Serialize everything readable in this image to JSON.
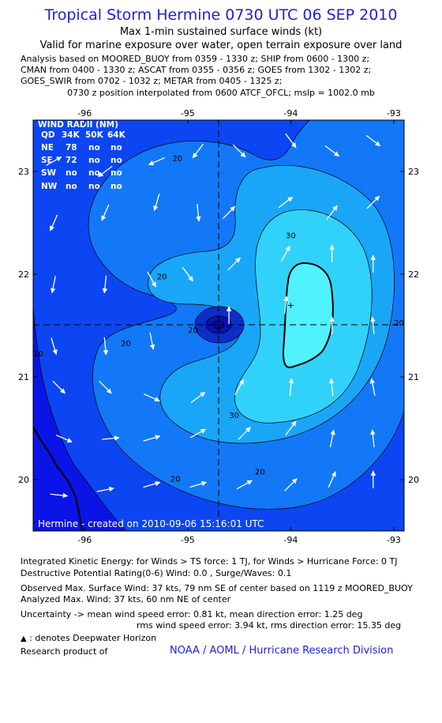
{
  "header": {
    "title": "Tropical Storm Hermine 0730 UTC 06 SEP 2010",
    "subtitle": "Max 1-min sustained surface winds (kt)",
    "valid": "Valid for marine exposure over water, open terrain exposure over land",
    "analysis_lines": [
      "Analysis based on MOORED_BUOY from 0359 - 1330 z; SHIP from 0600 - 1300 z;",
      "CMAN from 0400 - 1330 z; ASCAT from 0355 - 0356 z; GOES from 1302 - 1302 z;",
      "GOES_SWIR from 0702 - 1032 z; METAR from 0405 - 1325 z;"
    ],
    "position_note": "0730 z position interpolated from 0600 ATCF_OFCL; mslp = 1002.0 mb"
  },
  "chart_data": {
    "type": "contour",
    "xlim": [
      -96.5,
      -92.9
    ],
    "ylim": [
      19.5,
      23.5
    ],
    "x_ticks": [
      -96,
      -95,
      -94,
      -93
    ],
    "x_tick_labels": [
      "-96",
      "-95",
      "-94",
      "-93"
    ],
    "y_ticks": [
      20,
      21,
      22,
      23
    ],
    "y_tick_labels": [
      "20",
      "21",
      "22",
      "23"
    ],
    "storm_center": {
      "lon": -95.0,
      "lat": 21.5
    },
    "max_wind_marker": {
      "lon": -94.0,
      "lat": 21.7
    },
    "contour_levels": [
      10,
      20,
      30,
      34
    ],
    "contour_labels": [
      {
        "text": "20",
        "lon": -95.1,
        "lat": 23.1
      },
      {
        "text": "20",
        "lon": -95.25,
        "lat": 21.95
      },
      {
        "text": "20",
        "lon": -95.6,
        "lat": 21.3
      },
      {
        "text": "30",
        "lon": -94.0,
        "lat": 22.35
      },
      {
        "text": "30",
        "lon": -94.55,
        "lat": 20.6
      },
      {
        "text": "20",
        "lon": -94.3,
        "lat": 20.05
      },
      {
        "text": "20",
        "lon": -95.12,
        "lat": 19.98
      },
      {
        "text": "20",
        "lon": -92.95,
        "lat": 21.5
      },
      {
        "text": "10",
        "lon": -96.45,
        "lat": 21.2
      },
      {
        "text": "20",
        "lon": -94.95,
        "lat": 21.43
      }
    ],
    "wind_barbs": [
      {
        "lon": -96.3,
        "lat": 23.1,
        "u": 0.9,
        "v": 0.5
      },
      {
        "lon": -95.8,
        "lat": 23.0,
        "u": -0.8,
        "v": -0.6
      },
      {
        "lon": -95.3,
        "lat": 23.1,
        "u": -0.9,
        "v": -0.4
      },
      {
        "lon": -94.9,
        "lat": 23.2,
        "u": -0.6,
        "v": -0.8
      },
      {
        "lon": -94.5,
        "lat": 23.2,
        "u": 0.7,
        "v": -0.7
      },
      {
        "lon": -94.0,
        "lat": 23.3,
        "u": 0.6,
        "v": -0.8
      },
      {
        "lon": -93.6,
        "lat": 23.2,
        "u": 0.8,
        "v": -0.6
      },
      {
        "lon": -93.2,
        "lat": 23.3,
        "u": 0.8,
        "v": -0.6
      },
      {
        "lon": -96.3,
        "lat": 22.5,
        "u": -0.4,
        "v": -0.9
      },
      {
        "lon": -95.8,
        "lat": 22.6,
        "u": -0.4,
        "v": -0.9
      },
      {
        "lon": -95.3,
        "lat": 22.7,
        "u": -0.3,
        "v": -1.0
      },
      {
        "lon": -94.9,
        "lat": 22.6,
        "u": 0.1,
        "v": -1.0
      },
      {
        "lon": -94.6,
        "lat": 22.6,
        "u": 0.7,
        "v": 0.7
      },
      {
        "lon": -94.05,
        "lat": 22.7,
        "u": 0.8,
        "v": 0.6
      },
      {
        "lon": -93.6,
        "lat": 22.6,
        "u": 0.6,
        "v": 0.8
      },
      {
        "lon": -93.2,
        "lat": 22.7,
        "u": 0.7,
        "v": 0.7
      },
      {
        "lon": -96.3,
        "lat": 21.9,
        "u": -0.2,
        "v": -1.0
      },
      {
        "lon": -95.8,
        "lat": 21.9,
        "u": -0.1,
        "v": -1.0
      },
      {
        "lon": -95.35,
        "lat": 21.95,
        "u": 0.5,
        "v": -0.9
      },
      {
        "lon": -95.0,
        "lat": 22.0,
        "u": 0.6,
        "v": -0.8
      },
      {
        "lon": -94.55,
        "lat": 22.1,
        "u": 0.7,
        "v": 0.7
      },
      {
        "lon": -94.05,
        "lat": 22.2,
        "u": 0.5,
        "v": 0.9
      },
      {
        "lon": -93.6,
        "lat": 22.2,
        "u": 0.0,
        "v": 1.0
      },
      {
        "lon": -93.2,
        "lat": 22.1,
        "u": 0.0,
        "v": 1.0
      },
      {
        "lon": -96.3,
        "lat": 21.3,
        "u": 0.3,
        "v": -1.0
      },
      {
        "lon": -95.8,
        "lat": 21.3,
        "u": 0.1,
        "v": -1.0
      },
      {
        "lon": -95.35,
        "lat": 21.35,
        "u": 0.2,
        "v": -1.0
      },
      {
        "lon": -94.6,
        "lat": 21.6,
        "u": 0.0,
        "v": 1.0
      },
      {
        "lon": -94.05,
        "lat": 21.7,
        "u": 0.1,
        "v": 1.0
      },
      {
        "lon": -93.6,
        "lat": 21.5,
        "u": 0.0,
        "v": 1.0
      },
      {
        "lon": -93.2,
        "lat": 21.5,
        "u": -0.1,
        "v": 1.0
      },
      {
        "lon": -96.25,
        "lat": 20.9,
        "u": 0.7,
        "v": -0.7
      },
      {
        "lon": -95.8,
        "lat": 20.9,
        "u": 0.7,
        "v": -0.7
      },
      {
        "lon": -95.35,
        "lat": 20.8,
        "u": 0.9,
        "v": -0.4
      },
      {
        "lon": -94.9,
        "lat": 20.8,
        "u": 0.8,
        "v": 0.6
      },
      {
        "lon": -94.5,
        "lat": 20.9,
        "u": 0.5,
        "v": 0.9
      },
      {
        "lon": -94.0,
        "lat": 20.9,
        "u": 0.1,
        "v": 1.0
      },
      {
        "lon": -93.6,
        "lat": 20.9,
        "u": -0.1,
        "v": 1.0
      },
      {
        "lon": -93.2,
        "lat": 20.9,
        "u": -0.2,
        "v": 1.0
      },
      {
        "lon": -96.2,
        "lat": 20.4,
        "u": 0.9,
        "v": -0.4
      },
      {
        "lon": -95.75,
        "lat": 20.4,
        "u": 1.0,
        "v": 0.1
      },
      {
        "lon": -95.35,
        "lat": 20.4,
        "u": 1.0,
        "v": 0.3
      },
      {
        "lon": -94.9,
        "lat": 20.45,
        "u": 0.9,
        "v": 0.5
      },
      {
        "lon": -94.45,
        "lat": 20.45,
        "u": 0.7,
        "v": 0.7
      },
      {
        "lon": -94.0,
        "lat": 20.5,
        "u": 0.6,
        "v": 0.8
      },
      {
        "lon": -93.6,
        "lat": 20.4,
        "u": 0.2,
        "v": 1.0
      },
      {
        "lon": -93.2,
        "lat": 20.4,
        "u": -0.1,
        "v": 1.0
      },
      {
        "lon": -96.25,
        "lat": 19.85,
        "u": 1.0,
        "v": -0.1
      },
      {
        "lon": -95.8,
        "lat": 19.9,
        "u": 1.0,
        "v": 0.2
      },
      {
        "lon": -95.35,
        "lat": 19.95,
        "u": 1.0,
        "v": 0.3
      },
      {
        "lon": -94.9,
        "lat": 19.95,
        "u": 1.0,
        "v": 0.3
      },
      {
        "lon": -94.45,
        "lat": 19.95,
        "u": 0.9,
        "v": 0.5
      },
      {
        "lon": -94.0,
        "lat": 19.95,
        "u": 0.7,
        "v": 0.7
      },
      {
        "lon": -93.6,
        "lat": 20.0,
        "u": 0.4,
        "v": 0.9
      },
      {
        "lon": -93.2,
        "lat": 20.0,
        "u": 0.0,
        "v": 1.0
      }
    ],
    "colors": {
      "background": "#0a14e6",
      "level_10": "#0b46f2",
      "level_20": "#1278f7",
      "level_30": "#1aa6f7",
      "level_34": "#31d2fa",
      "level_max": "#4ff2fd",
      "center_ring": "#0a2ec8",
      "center_core": "#0a10b8"
    },
    "legend": {
      "title": "WIND RADII (NM)",
      "header": [
        "QD",
        "34K",
        "50K",
        "64K"
      ],
      "rows": [
        [
          "NE",
          "78",
          "no",
          "no"
        ],
        [
          "SE",
          "72",
          "no",
          "no"
        ],
        [
          "SW",
          "no",
          "no",
          "no"
        ],
        [
          "NW",
          "no",
          "no",
          "no"
        ]
      ]
    },
    "credit": "Hermine - created on 2010-09-06 15:16:01 UTC"
  },
  "footer": {
    "ike": "Integrated Kinetic Energy:  for Winds > TS force: 1 TJ,  for Winds > Hurricane Force: 0 TJ",
    "dpr": "Destructive Potential Rating(0-6)   Wind: 0.0 , Surge/Waves: 0.1",
    "observed": "Observed Max. Surface Wind: 37 kts, 79 nm SE of center based on 1119 z MOORED_BUOY",
    "analyzed": "Analyzed Max. Wind: 37 kts, 60 nm NE of center",
    "uncertainty1": "Uncertainty -> mean wind speed error: 0.81 kt,   mean direction error: 1.25 deg",
    "uncertainty2": "rms wind speed error: 3.94 kt,   rms direction error: 15.35 deg",
    "deepwater": ": denotes Deepwater Horizon",
    "research": "Research product of",
    "noaa": "NOAA / AOML / Hurricane Research Division"
  }
}
